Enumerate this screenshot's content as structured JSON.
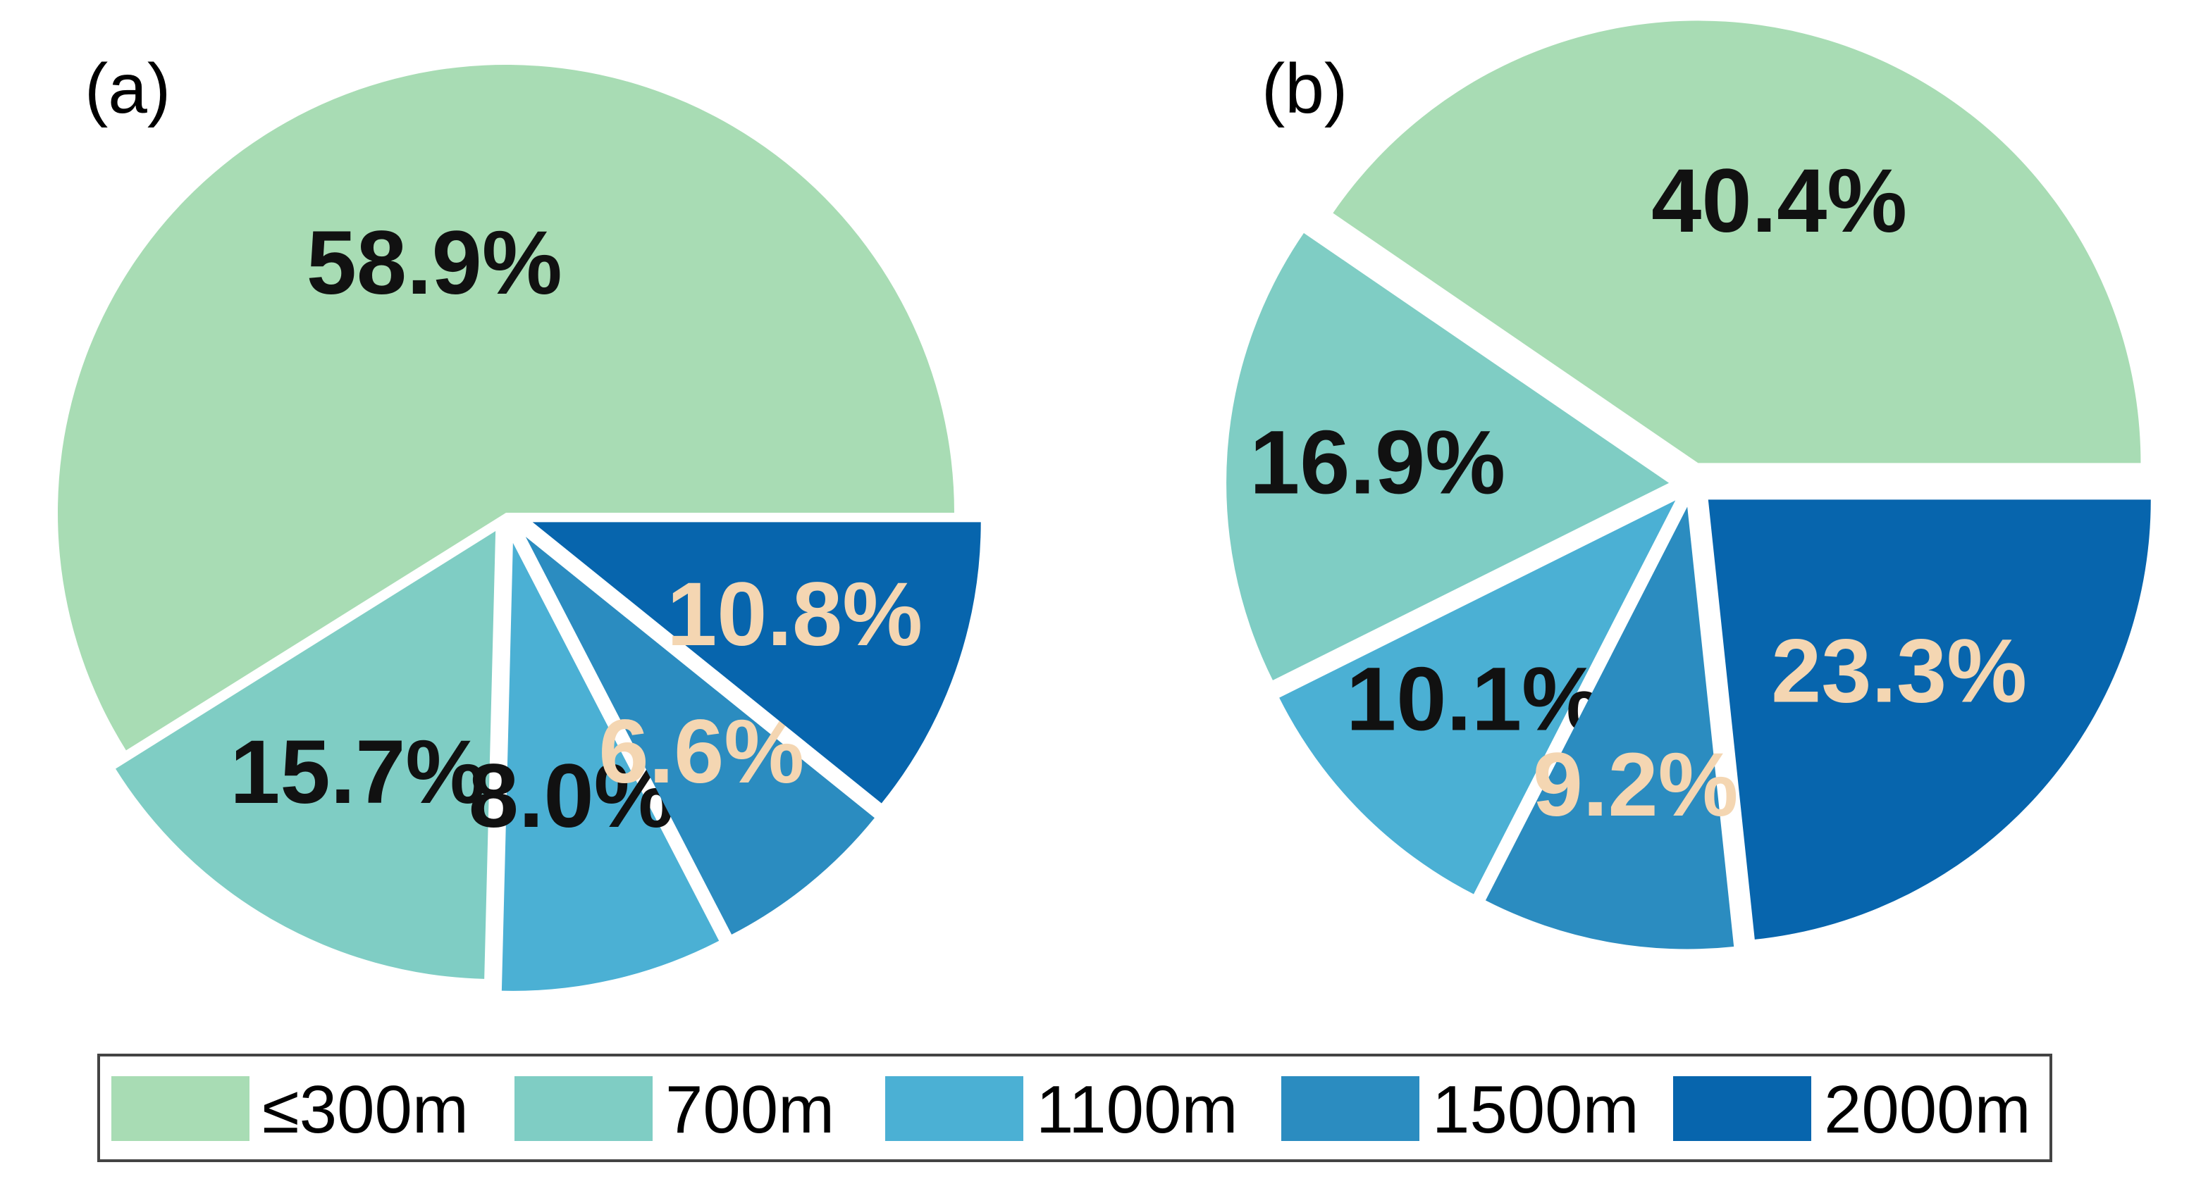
{
  "chart_data": [
    {
      "type": "pie",
      "panel_label": "(a)",
      "categories": [
        "≤300m",
        "700m",
        "1100m",
        "1500m",
        "2000m"
      ],
      "values": [
        58.9,
        15.7,
        8.0,
        6.6,
        10.8
      ],
      "labels": [
        "58.9%",
        "15.7%",
        "8.0%",
        "6.6%",
        "10.8%"
      ],
      "start_angle_deg": 0,
      "direction": "counterclockwise",
      "exploded": true
    },
    {
      "type": "pie",
      "panel_label": "(b)",
      "categories": [
        "≤300m",
        "700m",
        "1100m",
        "1500m",
        "2000m"
      ],
      "values": [
        40.4,
        16.9,
        10.1,
        9.2,
        23.3
      ],
      "labels": [
        "40.4%",
        "16.9%",
        "10.1%",
        "9.2%",
        "23.3%"
      ],
      "start_angle_deg": 0,
      "direction": "counterclockwise",
      "exploded": true
    }
  ],
  "legend": {
    "placement": "bottom",
    "entries": [
      "≤300m",
      "700m",
      "1100m",
      "1500m",
      "2000m"
    ]
  },
  "colors": [
    "#a8dcb4",
    "#7fcdc4",
    "#4bb0d4",
    "#2b8cc0",
    "#0765ad"
  ],
  "label_colors": {
    "dark": "#111111",
    "light": "#f4d6b2"
  },
  "label_color_by_panel": [
    [
      "dark",
      "dark",
      "dark",
      "light",
      "light"
    ],
    [
      "dark",
      "dark",
      "dark",
      "light",
      "light"
    ]
  ]
}
